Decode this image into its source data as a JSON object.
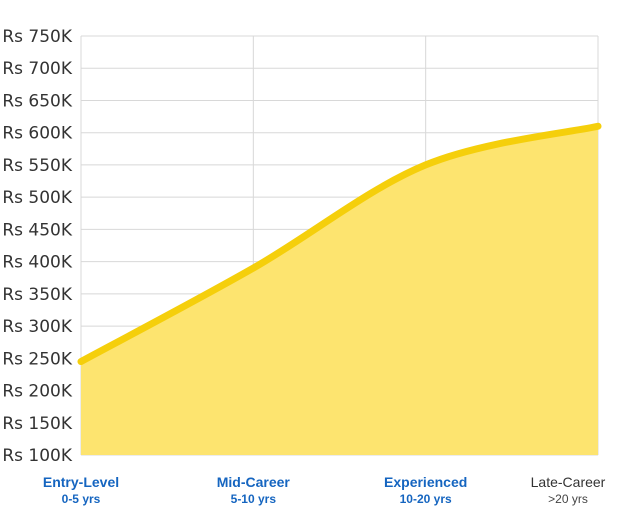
{
  "chart_data": {
    "type": "area",
    "title": "",
    "xlabel": "",
    "ylabel": "",
    "categories": [
      {
        "label": "Entry-Level",
        "sublabel": "0-5 yrs",
        "highlight": true
      },
      {
        "label": "Mid-Career",
        "sublabel": "5-10 yrs",
        "highlight": true
      },
      {
        "label": "Experienced",
        "sublabel": "10-20 yrs",
        "highlight": true
      },
      {
        "label": "Late-Career",
        "sublabel": ">20 yrs",
        "highlight": false
      }
    ],
    "values": [
      245000,
      390000,
      550000,
      610000
    ],
    "ylim": [
      100000,
      750000
    ],
    "yticks": [
      750000,
      700000,
      650000,
      600000,
      550000,
      500000,
      450000,
      400000,
      350000,
      300000,
      250000,
      200000,
      150000,
      100000
    ],
    "ytick_labels": [
      "Rs 750K",
      "Rs 700K",
      "Rs 650K",
      "Rs 600K",
      "Rs 550K",
      "Rs 500K",
      "Rs 450K",
      "Rs 400K",
      "Rs 350K",
      "Rs 300K",
      "Rs 250K",
      "Rs 200K",
      "Rs 150K",
      "Rs 100K"
    ],
    "grid": true,
    "colors": {
      "line": "#f5cf0b",
      "fill": "#fde46f",
      "grid": "#d8d8d8",
      "highlight_label": "#1565c0"
    }
  }
}
